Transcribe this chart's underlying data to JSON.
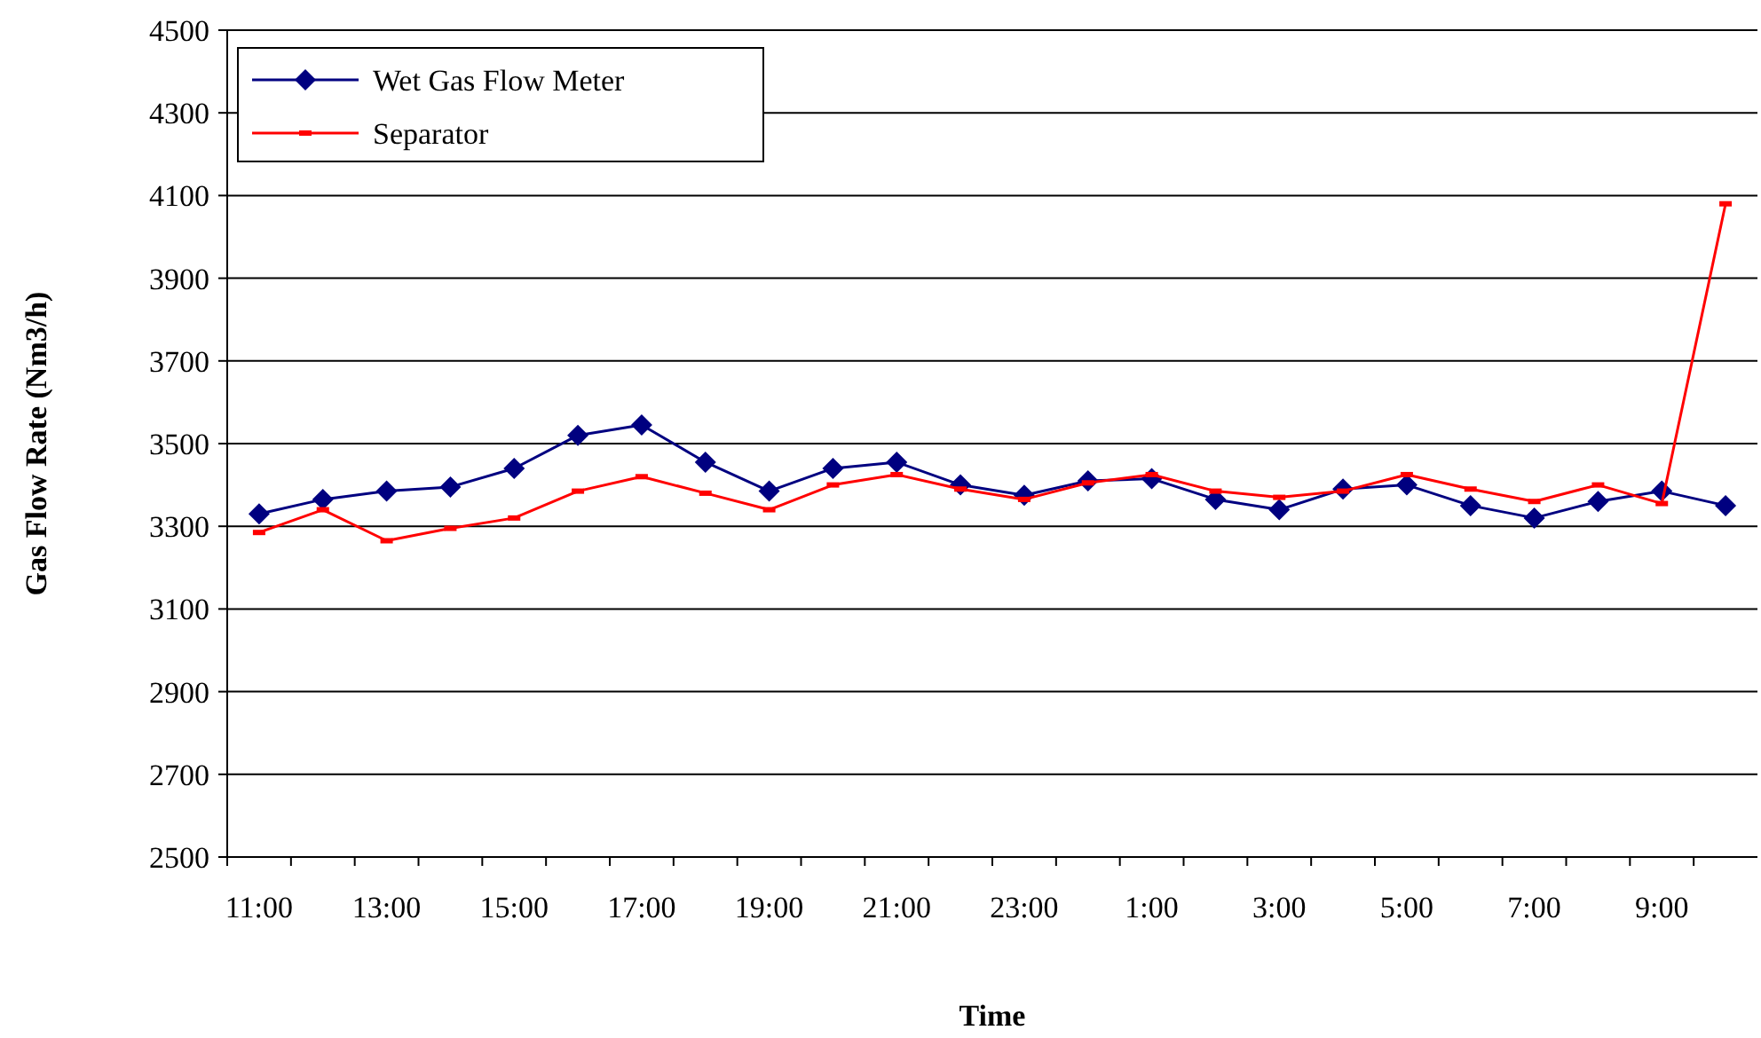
{
  "chart_data": {
    "type": "line",
    "xlabel": "Time",
    "ylabel": "Gas Flow Rate (Nm3/h)",
    "categories": [
      "11:00",
      null,
      "13:00",
      null,
      "15:00",
      null,
      "17:00",
      null,
      "19:00",
      null,
      "21:00",
      null,
      "23:00",
      null,
      "1:00",
      null,
      "3:00",
      null,
      "5:00",
      null,
      "7:00",
      null,
      "9:00",
      null
    ],
    "series": [
      {
        "name": "Wet Gas Flow Meter",
        "color": "#000080",
        "marker": "diamond",
        "values": [
          3330,
          3365,
          3385,
          3395,
          3440,
          3520,
          3545,
          3455,
          3385,
          3440,
          3455,
          3400,
          3375,
          3410,
          3415,
          3365,
          3340,
          3390,
          3400,
          3350,
          3320,
          3360,
          3385,
          3350
        ]
      },
      {
        "name": "Separator",
        "color": "#ff0000",
        "marker": "square",
        "values": [
          3285,
          3340,
          3265,
          3295,
          3320,
          3385,
          3420,
          3380,
          3340,
          3400,
          3425,
          3390,
          3365,
          3405,
          3425,
          3385,
          3370,
          3385,
          3425,
          3390,
          3360,
          3400,
          3355,
          4080
        ]
      }
    ],
    "ylim": [
      2500,
      4500
    ],
    "yticks": [
      2500,
      2700,
      2900,
      3100,
      3300,
      3500,
      3700,
      3900,
      4100,
      4300,
      4500
    ],
    "grid": "y",
    "legend": "top left"
  }
}
